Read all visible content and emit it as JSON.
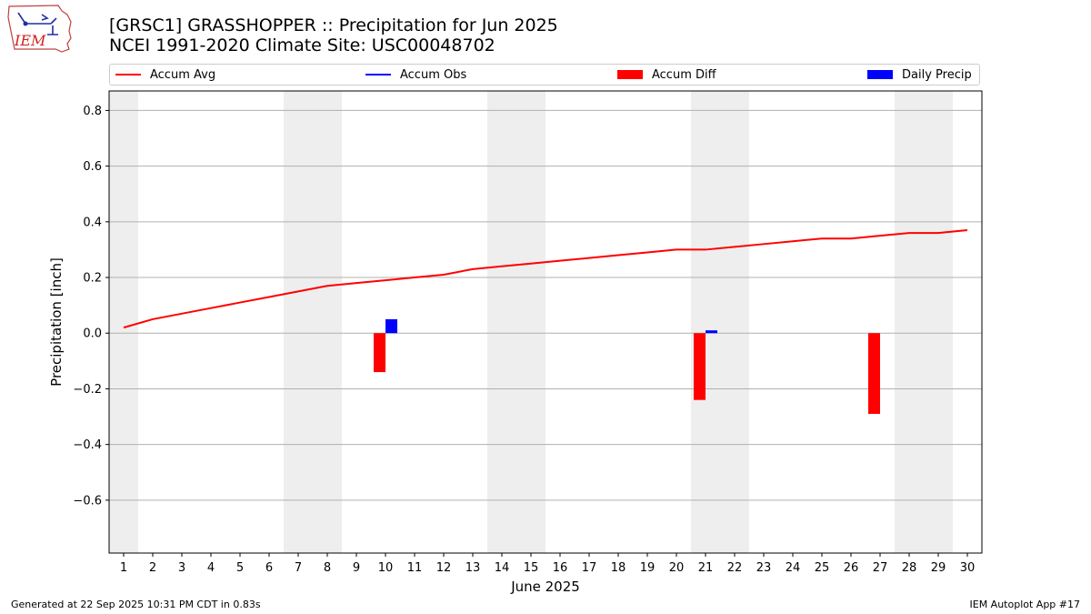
{
  "header": {
    "title_line1": "[GRSC1] GRASSHOPPER :: Precipitation for Jun 2025",
    "title_line2": "NCEI 1991-2020 Climate Site: USC00048702",
    "logo_text": "IEM"
  },
  "legend": {
    "accum_avg": "Accum Avg",
    "accum_obs": "Accum Obs",
    "accum_diff": "Accum Diff",
    "daily_precip": "Daily Precip"
  },
  "footer": {
    "generated": "Generated at 22 Sep 2025 10:31 PM CDT in 0.83s",
    "app": "IEM Autoplot App #17"
  },
  "colors": {
    "avg": "#ff0000",
    "obs": "#0000ff",
    "diff": "#ff0000",
    "daily": "#0000ff",
    "weekend_shade": "#eeeeee",
    "grid": "#b0b0b0"
  },
  "chart_data": {
    "type": "bar",
    "title": "[GRSC1] GRASSHOPPER :: Precipitation for Jun 2025",
    "subtitle": "NCEI 1991-2020 Climate Site: USC00048702",
    "xlabel": "June 2025",
    "ylabel": "Precipitation [inch]",
    "ylim": [
      -0.79,
      0.87
    ],
    "yticks": [
      -0.6,
      -0.4,
      -0.2,
      0.0,
      0.2,
      0.4,
      0.6,
      0.8
    ],
    "ytick_labels": [
      "−0.6",
      "−0.4",
      "−0.2",
      "0.0",
      "0.2",
      "0.4",
      "0.6",
      "0.8"
    ],
    "days": [
      1,
      2,
      3,
      4,
      5,
      6,
      7,
      8,
      9,
      10,
      11,
      12,
      13,
      14,
      15,
      16,
      17,
      18,
      19,
      20,
      21,
      22,
      23,
      24,
      25,
      26,
      27,
      28,
      29,
      30
    ],
    "weekend_days": [
      1,
      7,
      8,
      14,
      15,
      21,
      22,
      28,
      29
    ],
    "grid": "y",
    "legend_placement": "top",
    "series": [
      {
        "name": "Accum Avg",
        "type": "line",
        "values": [
          0.02,
          0.05,
          0.07,
          0.09,
          0.11,
          0.13,
          0.15,
          0.17,
          0.18,
          0.19,
          0.2,
          0.21,
          0.23,
          0.24,
          0.25,
          0.26,
          0.27,
          0.28,
          0.29,
          0.3,
          0.3,
          0.31,
          0.32,
          0.33,
          0.34,
          0.34,
          0.35,
          0.36,
          0.36,
          0.37
        ]
      },
      {
        "name": "Accum Obs",
        "type": "line",
        "values": []
      },
      {
        "name": "Accum Diff",
        "type": "bar",
        "points": [
          {
            "day": 10,
            "value": -0.14
          },
          {
            "day": 21,
            "value": -0.24
          },
          {
            "day": 27,
            "value": -0.29
          }
        ]
      },
      {
        "name": "Daily Precip",
        "type": "bar",
        "points": [
          {
            "day": 10,
            "value": 0.05
          },
          {
            "day": 21,
            "value": 0.01
          }
        ]
      }
    ]
  }
}
